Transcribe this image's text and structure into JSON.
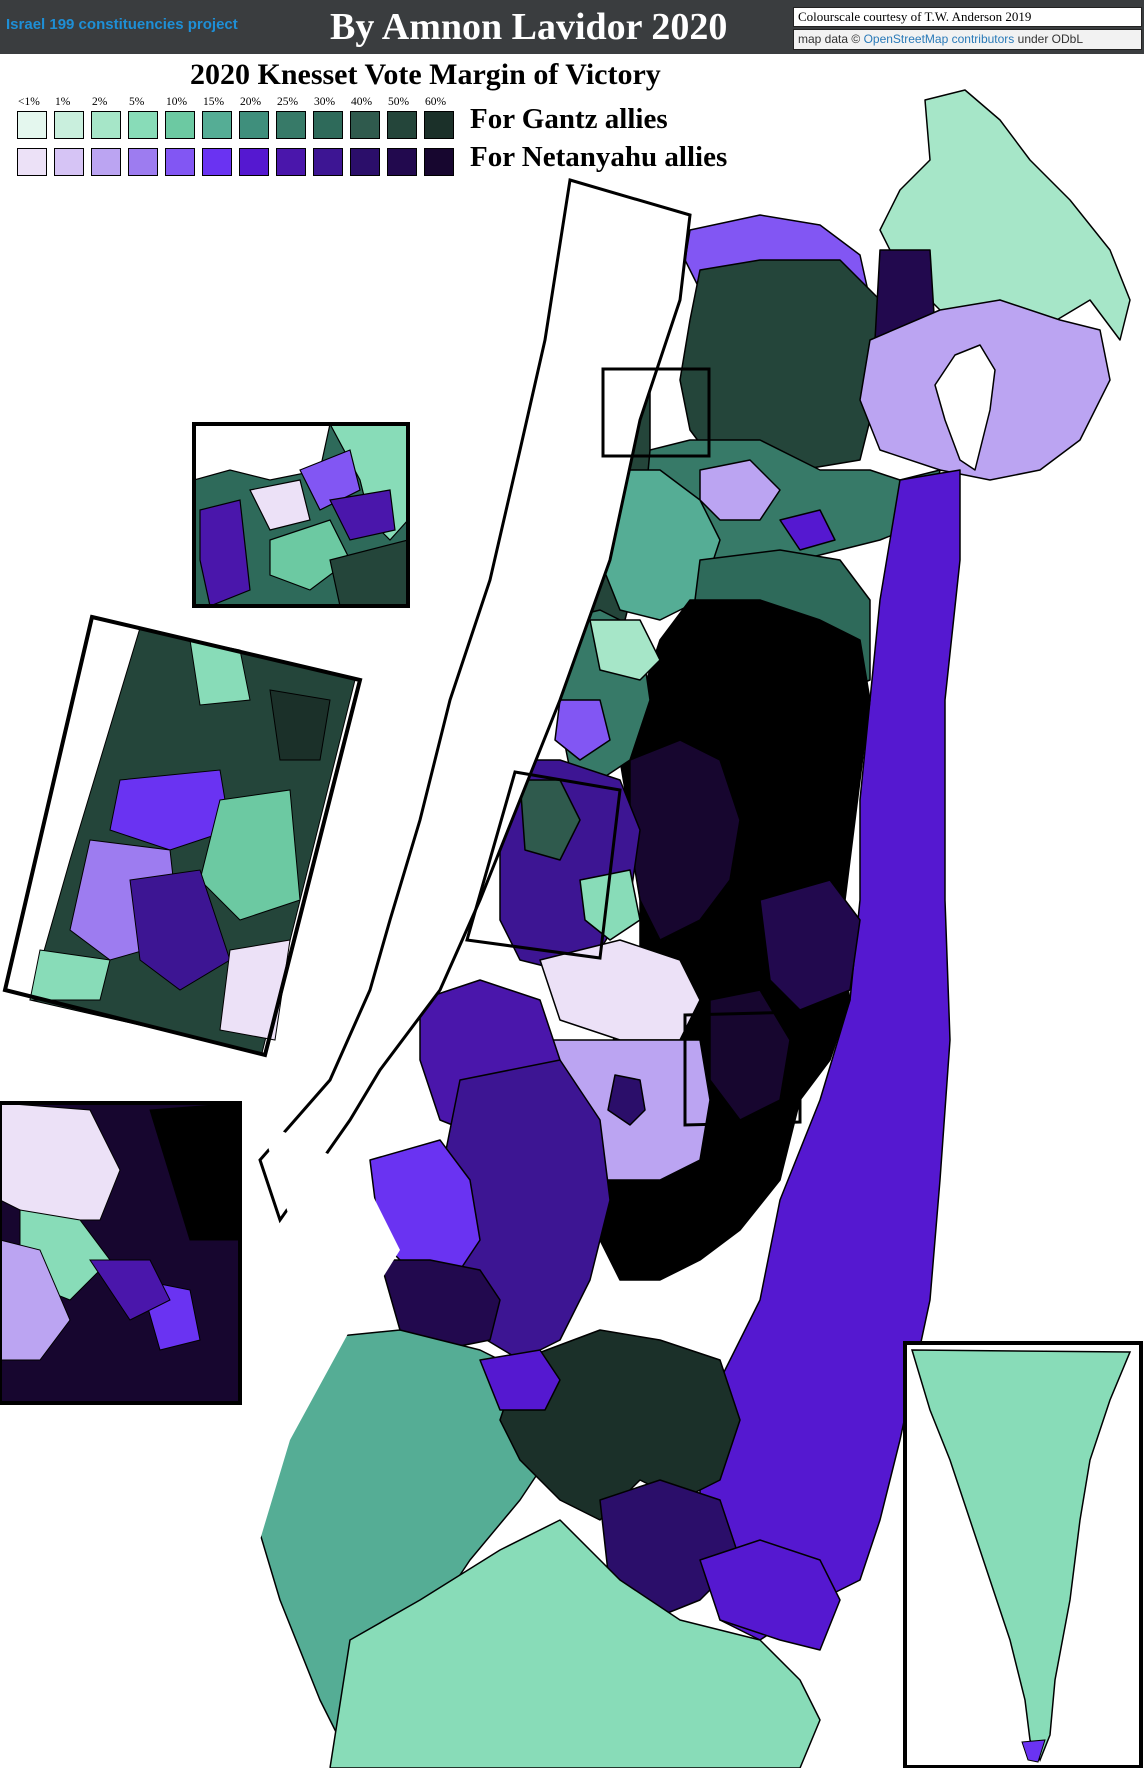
{
  "header": {
    "project": "Israel 199 constituencies project",
    "byline": "By Amnon Lavidor 2020",
    "credit_colourscale": "Colourscale courtesy of T.W. Anderson 2019",
    "credit_map_prefix": "map data ©",
    "credit_map_link": "OpenStreetMap contributors",
    "credit_map_suffix": "under ODbL"
  },
  "title": "2020 Knesset Vote Margin of Victory",
  "legend": {
    "thresholds": [
      "<1%",
      "1%",
      "2%",
      "5%",
      "10%",
      "15%",
      "20%",
      "25%",
      "30%",
      "40%",
      "50%",
      "60%"
    ],
    "series": [
      {
        "label": "For Gantz allies",
        "colors": [
          "#e4f7ee",
          "#c9efdd",
          "#a6e6c8",
          "#88dcb8",
          "#6cc9a2",
          "#55ad95",
          "#3f8f7c",
          "#377a68",
          "#2e6a5a",
          "#2f5a4d",
          "#24453a",
          "#1b3029"
        ]
      },
      {
        "label": "For Netanyahu allies",
        "colors": [
          "#ece1f7",
          "#d6c4f5",
          "#bba4f2",
          "#9d7cf0",
          "#8256f3",
          "#6a33f2",
          "#5518d0",
          "#4a16ab",
          "#3d1593",
          "#2b0e6a",
          "#22094e",
          "#17062f"
        ]
      }
    ]
  },
  "regions_notes": {
    "north_golan": "For Gantz allies",
    "negev_south": "For Gantz allies",
    "jordan_valley_east": "For Netanyahu allies"
  }
}
